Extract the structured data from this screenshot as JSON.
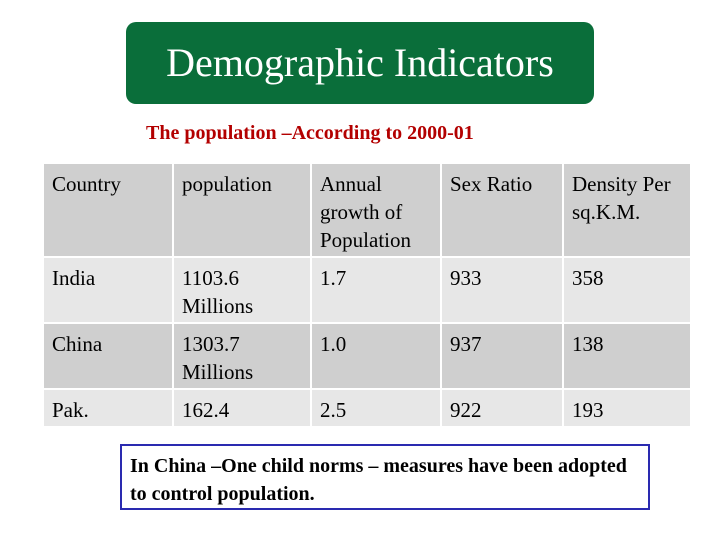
{
  "title": "Demographic Indicators",
  "subtitle": "The population –According to 2000-01",
  "table": {
    "headers": [
      "Country",
      "population",
      "Annual growth of Population",
      "Sex Ratio",
      "Density Per sq.K.M."
    ],
    "rows": [
      [
        "India",
        "1103.6 Millions",
        "1.7",
        "933",
        "358"
      ],
      [
        "China",
        "1303.7 Millions",
        "1.0",
        "937",
        "138"
      ],
      [
        "Pak.",
        "162.4",
        "2.5",
        "922",
        "193"
      ]
    ]
  },
  "note": "In China –One child norms – measures have been adopted to control population.",
  "colors": {
    "title_bg": "#0a6e3a",
    "title_text": "#ffffff",
    "subtitle_text": "#b30000",
    "row_dark": "#cfcfcf",
    "row_light": "#e7e7e7",
    "note_border": "#2a2ab0"
  }
}
